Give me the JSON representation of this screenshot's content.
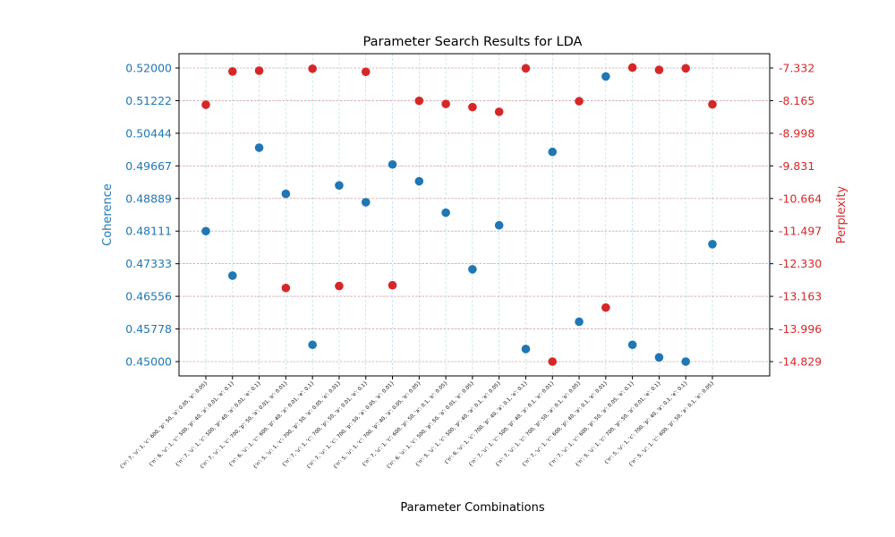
{
  "chart_data": {
    "type": "scatter",
    "title": "Parameter Search Results for LDA",
    "xlabel": "Parameter Combinations",
    "ylabel_left": "Coherence",
    "ylabel_right": "Perplexity",
    "colors": {
      "coherence": "#1f77b4",
      "perplexity": "#d62728"
    },
    "categories": [
      "{'n': 7, 'u': 1, 'c': 600, 'p': 50, 'a': 0.05, 'e': 0.05}",
      "{'n': 6, 'u': 1, 'c': 500, 'p': 40, 'a': 0.01, 'e': 0.1}",
      "{'n': 7, 'u': 1, 'c': 500, 'p': 40, 'a': 0.01, 'e': 0.1}",
      "{'n': 7, 'u': 1, 'c': 700, 'p': 50, 'a': 0.01, 'e': 0.01}",
      "{'n': 6, 'u': 1, 'c': 600, 'p': 40, 'a': 0.01, 'e': 0.1}",
      "{'n': 5, 'u': 1, 'c': 700, 'p': 50, 'a': 0.05, 'e': 0.01}",
      "{'n': 7, 'u': 1, 'c': 700, 'p': 50, 'a': 0.01, 'e': 0.1}",
      "{'n': 7, 'u': 1, 'c': 700, 'p': 50, 'a': 0.05, 'e': 0.01}",
      "{'n': 5, 'u': 1, 'c': 700, 'p': 40, 'a': 0.05, 'e': 0.05}",
      "{'n': 7, 'u': 1, 'c': 600, 'p': 50, 'a': 0.1, 'e': 0.05}",
      "{'n': 6, 'u': 1, 'c': 500, 'p': 50, 'a': 0.01, 'e': 0.05}",
      "{'n': 5, 'u': 1, 'c': 500, 'p': 40, 'a': 0.1, 'e': 0.05}",
      "{'n': 6, 'u': 1, 'c': 700, 'p': 40, 'a': 0.1, 'e': 0.1}",
      "{'n': 7, 'u': 1, 'c': 500, 'p': 40, 'a': 0.1, 'e': 0.01}",
      "{'n': 7, 'u': 1, 'c': 700, 'p': 50, 'a': 0.1, 'e': 0.05}",
      "{'n': 7, 'u': 1, 'c': 600, 'p': 40, 'a': 0.1, 'e': 0.01}",
      "{'n': 7, 'u': 1, 'c': 600, 'p': 50, 'a': 0.05, 'e': 0.1}",
      "{'n': 5, 'u': 1, 'c': 700, 'p': 50, 'a': 0.01, 'e': 0.1}",
      "{'n': 5, 'u': 1, 'c': 700, 'p': 40, 'a': 0.1, 'e': 0.1}",
      "{'n': 5, 'u': 1, 'c': 600, 'p': 50, 'a': 0.1, 'e': 0.05}"
    ],
    "series": [
      {
        "name": "Coherence",
        "axis": "left",
        "values": [
          0.4811,
          0.4705,
          0.501,
          0.49,
          0.454,
          0.492,
          0.488,
          0.497,
          0.493,
          0.4855,
          0.472,
          0.4825,
          0.453,
          0.5,
          0.4595,
          0.518,
          0.454,
          0.451,
          0.45,
          0.478
        ]
      },
      {
        "name": "Perplexity",
        "axis": "right",
        "values": [
          -8.27,
          -7.42,
          -7.4,
          -12.95,
          -7.35,
          -12.9,
          -7.43,
          -12.88,
          -8.17,
          -8.25,
          -8.33,
          -8.45,
          -7.34,
          -14.829,
          -8.18,
          -13.45,
          -7.32,
          -7.38,
          -7.34,
          -8.26
        ]
      }
    ],
    "ylim_left": [
      0.45,
      0.52
    ],
    "ylim_right": [
      -14.829,
      -7.332
    ],
    "yticks_left": [
      "0.45000",
      "0.45778",
      "0.46556",
      "0.47333",
      "0.48111",
      "0.48889",
      "0.49667",
      "0.50444",
      "0.51222",
      "0.52000"
    ],
    "yticks_right": [
      "-14.829",
      "-13.996",
      "-13.163",
      "-12.330",
      "-11.497",
      "-10.664",
      "-9.831",
      "-8.998",
      "-8.165",
      "-7.332"
    ],
    "grid": true,
    "legend": "none"
  }
}
